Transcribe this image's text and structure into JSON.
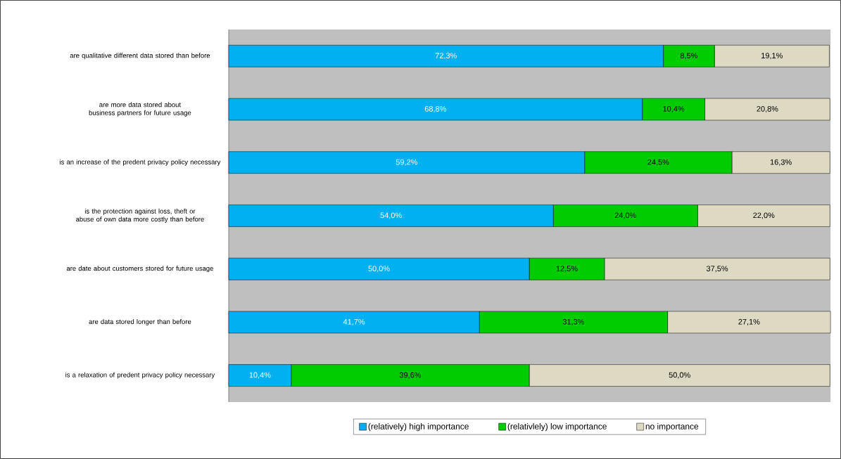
{
  "chart_data": {
    "type": "bar",
    "orientation": "horizontal",
    "stacked": true,
    "categories": [
      "are qualitative different data stored than before",
      "are more data stored about business partners for future usage",
      "is an increase of the predent privacy policy necessary",
      "is the protection against loss, theft or abuse of own data more costly than before",
      "are date about customers stored for future usage",
      "are data stored longer than before",
      "is a relaxation of predent privacy policy necessary"
    ],
    "series": [
      {
        "name": "(relatively) high importance",
        "color": "#00b0f0",
        "values": [
          72.3,
          68.8,
          59.2,
          54.0,
          50.0,
          41.7,
          10.4
        ],
        "value_labels": [
          "72,3%",
          "68,8%",
          "59,2%",
          "54,0%",
          "50,0%",
          "41,7%",
          "10,4%"
        ]
      },
      {
        "name": "(relativlely) low importance",
        "color": "#00cc00",
        "values": [
          8.5,
          10.4,
          24.5,
          24.0,
          12.5,
          31.3,
          39.6
        ],
        "value_labels": [
          "8,5%",
          "10,4%",
          "24,5%",
          "24,0%",
          "12,5%",
          "31,3%",
          "39,6%"
        ]
      },
      {
        "name": "no importance",
        "color": "#ddd9c3",
        "values": [
          19.1,
          20.8,
          16.3,
          22.0,
          37.5,
          27.1,
          50.0
        ],
        "value_labels": [
          "19,1%",
          "20,8%",
          "16,3%",
          "22,0%",
          "37,5%",
          "27,1%",
          "50,0%"
        ]
      }
    ],
    "tick_labels": "y",
    "legend": "bottom"
  }
}
